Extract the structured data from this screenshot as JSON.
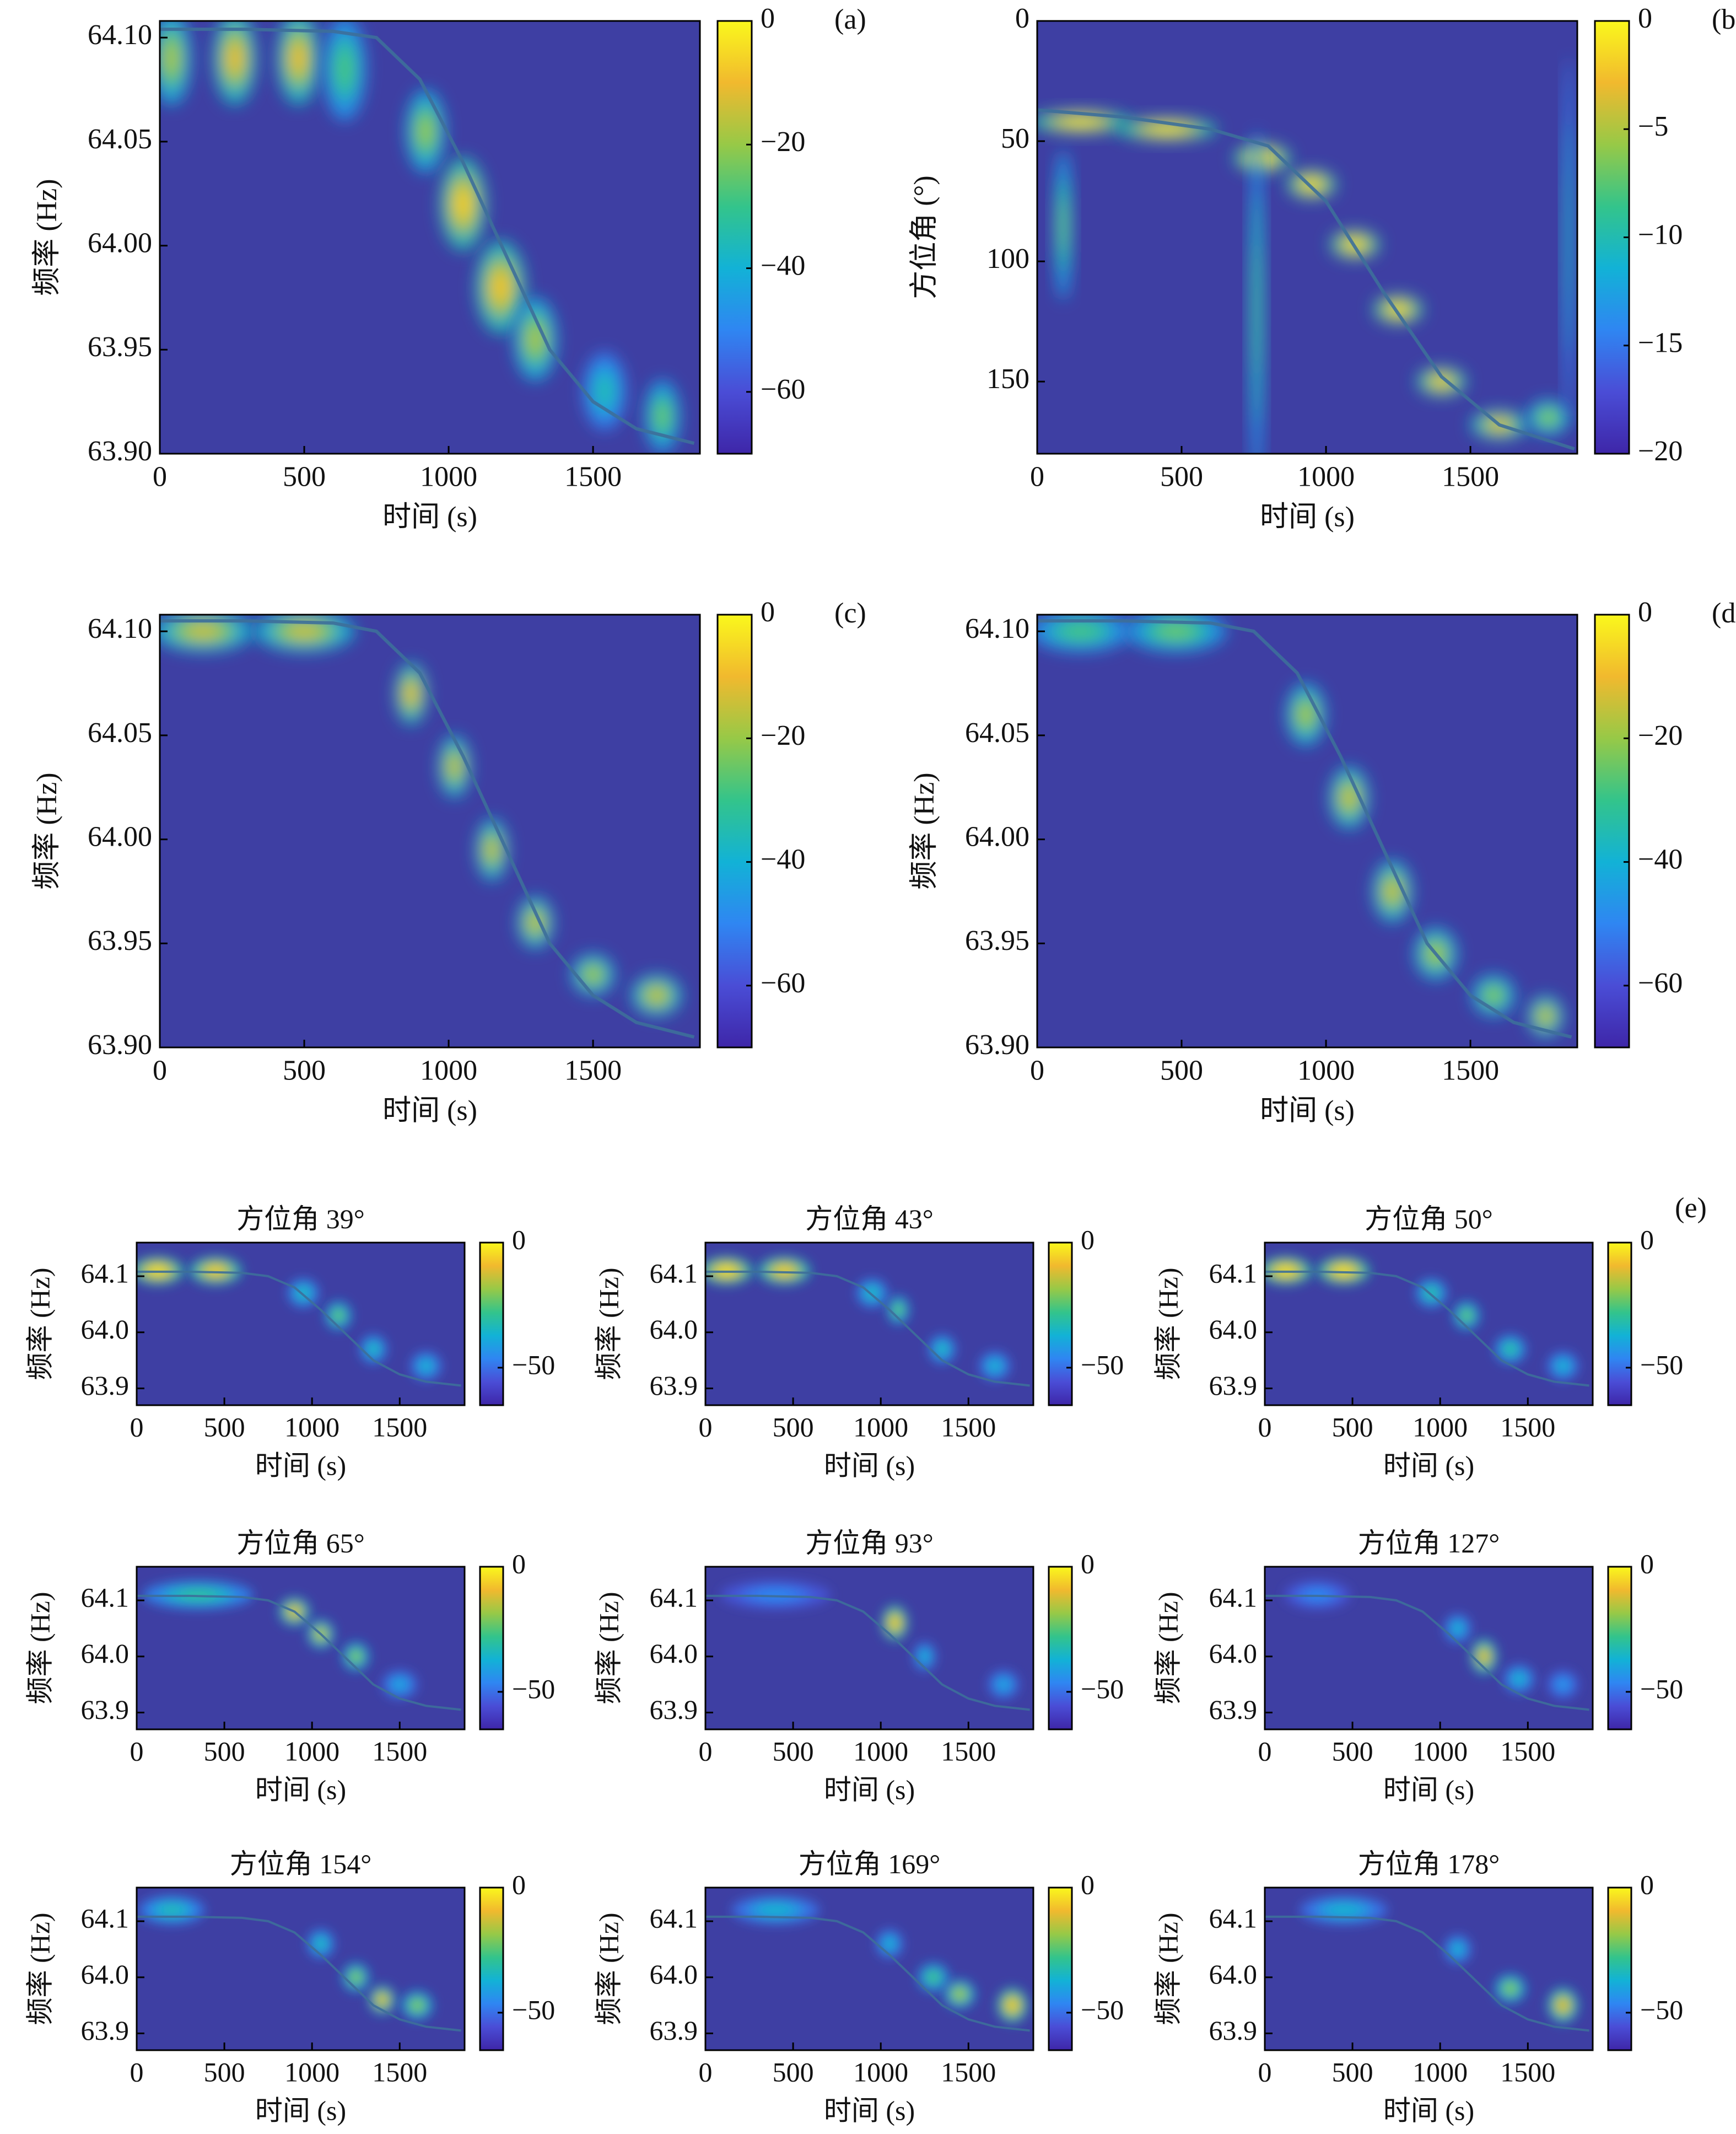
{
  "colormap": [
    "#3e26a8",
    "#4a4dd6",
    "#2f86f2",
    "#12b2d6",
    "#33c48b",
    "#97c947",
    "#f1b92e",
    "#faf81c"
  ],
  "plot_bg": "#3e3fa3",
  "ridge_line": "#3d6f9a",
  "chart_data": [
    {
      "id": "a",
      "type": "heatmap",
      "panel_label": "(a)",
      "xlabel": "时间 (s)",
      "ylabel": "频率 (Hz)",
      "x_range": [
        0,
        1870
      ],
      "y_range": [
        63.9,
        64.108
      ],
      "y_inverted": false,
      "x_ticks": [
        "0",
        "500",
        "1000",
        "1500"
      ],
      "x_tick_values": [
        0,
        500,
        1000,
        1500
      ],
      "y_ticks": [
        "64.10",
        "64.05",
        "64.00",
        "63.95",
        "63.90"
      ],
      "y_tick_values": [
        64.1,
        64.05,
        64.0,
        63.95,
        63.9
      ],
      "colorbar_range": [
        -70,
        0
      ],
      "colorbar_ticks": [
        "0",
        "−20",
        "−40",
        "−60"
      ],
      "colorbar_tick_values": [
        0,
        -20,
        -40,
        -60
      ],
      "ridge": {
        "time": [
          0,
          300,
          600,
          750,
          900,
          1050,
          1200,
          1350,
          1500,
          1650,
          1850
        ],
        "value": [
          64.104,
          64.104,
          64.103,
          64.1,
          64.08,
          64.04,
          63.995,
          63.95,
          63.925,
          63.912,
          63.905
        ]
      },
      "energy": [
        {
          "t": 40,
          "v": 64.09,
          "s": 0.75,
          "st": 55,
          "sv": 0.018
        },
        {
          "t": 260,
          "v": 64.09,
          "s": 0.85,
          "st": 60,
          "sv": 0.018
        },
        {
          "t": 480,
          "v": 64.09,
          "s": 0.85,
          "st": 60,
          "sv": 0.018
        },
        {
          "t": 640,
          "v": 64.085,
          "s": 0.6,
          "st": 60,
          "sv": 0.02
        },
        {
          "t": 920,
          "v": 64.055,
          "s": 0.72,
          "st": 55,
          "sv": 0.016
        },
        {
          "t": 1050,
          "v": 64.02,
          "s": 0.9,
          "st": 65,
          "sv": 0.018
        },
        {
          "t": 1180,
          "v": 63.98,
          "s": 0.88,
          "st": 70,
          "sv": 0.018
        },
        {
          "t": 1300,
          "v": 63.955,
          "s": 0.75,
          "st": 60,
          "sv": 0.016
        },
        {
          "t": 1540,
          "v": 63.93,
          "s": 0.5,
          "st": 60,
          "sv": 0.015
        },
        {
          "t": 1740,
          "v": 63.918,
          "s": 0.65,
          "st": 50,
          "sv": 0.014
        }
      ]
    },
    {
      "id": "b",
      "type": "heatmap",
      "panel_label": "(b)",
      "xlabel": "时间 (s)",
      "ylabel": "方位角 (°)",
      "x_range": [
        0,
        1870
      ],
      "y_range": [
        0,
        180
      ],
      "y_inverted": true,
      "x_ticks": [
        "0",
        "500",
        "1000",
        "1500"
      ],
      "x_tick_values": [
        0,
        500,
        1000,
        1500
      ],
      "y_ticks": [
        "0",
        "50",
        "100",
        "150"
      ],
      "y_tick_values": [
        0,
        50,
        100,
        150
      ],
      "colorbar_range": [
        -20,
        0
      ],
      "colorbar_ticks": [
        "0",
        "−5",
        "−10",
        "−15",
        "−20"
      ],
      "colorbar_tick_values": [
        0,
        -5,
        -10,
        -15,
        -20
      ],
      "ridge": {
        "time": [
          0,
          300,
          600,
          800,
          1000,
          1200,
          1400,
          1600,
          1860
        ],
        "value": [
          37,
          40,
          45,
          52,
          75,
          113,
          148,
          168,
          178
        ]
      },
      "energy": [
        {
          "t": 150,
          "v": 42,
          "s": 0.95,
          "st": 140,
          "sv": 4
        },
        {
          "t": 450,
          "v": 45,
          "s": 0.95,
          "st": 140,
          "sv": 4
        },
        {
          "t": 780,
          "v": 57,
          "s": 0.95,
          "st": 80,
          "sv": 5
        },
        {
          "t": 950,
          "v": 68,
          "s": 0.95,
          "st": 70,
          "sv": 5
        },
        {
          "t": 1100,
          "v": 93,
          "s": 0.95,
          "st": 70,
          "sv": 5
        },
        {
          "t": 1250,
          "v": 120,
          "s": 0.95,
          "st": 70,
          "sv": 5
        },
        {
          "t": 1400,
          "v": 150,
          "s": 0.9,
          "st": 70,
          "sv": 5
        },
        {
          "t": 1600,
          "v": 168,
          "s": 0.85,
          "st": 80,
          "sv": 5
        },
        {
          "t": 1770,
          "v": 165,
          "s": 0.7,
          "st": 60,
          "sv": 6
        },
        {
          "t": 90,
          "v": 85,
          "s": 0.65,
          "st": 25,
          "sv": 25
        },
        {
          "t": 760,
          "v": 120,
          "s": 0.6,
          "st": 20,
          "sv": 60
        },
        {
          "t": 1840,
          "v": 90,
          "s": 0.5,
          "st": 15,
          "sv": 60
        }
      ]
    },
    {
      "id": "c",
      "type": "heatmap",
      "panel_label": "(c)",
      "xlabel": "时间 (s)",
      "ylabel": "频率 (Hz)",
      "x_range": [
        0,
        1870
      ],
      "y_range": [
        63.9,
        64.108
      ],
      "y_inverted": false,
      "x_ticks": [
        "0",
        "500",
        "1000",
        "1500"
      ],
      "x_tick_values": [
        0,
        500,
        1000,
        1500
      ],
      "y_ticks": [
        "64.10",
        "64.05",
        "64.00",
        "63.95",
        "63.90"
      ],
      "y_tick_values": [
        64.1,
        64.05,
        64.0,
        63.95,
        63.9
      ],
      "colorbar_range": [
        -70,
        0
      ],
      "colorbar_ticks": [
        "0",
        "−20",
        "−40",
        "−60"
      ],
      "colorbar_tick_values": [
        0,
        -20,
        -40,
        -60
      ],
      "ridge": {
        "time": [
          0,
          300,
          600,
          750,
          900,
          1050,
          1200,
          1350,
          1500,
          1650,
          1850
        ],
        "value": [
          64.105,
          64.105,
          64.104,
          64.1,
          64.08,
          64.04,
          63.995,
          63.95,
          63.925,
          63.912,
          63.905
        ]
      },
      "energy": [
        {
          "t": 150,
          "v": 64.1,
          "s": 0.8,
          "st": 140,
          "sv": 0.008
        },
        {
          "t": 500,
          "v": 64.1,
          "s": 0.8,
          "st": 140,
          "sv": 0.008
        },
        {
          "t": 870,
          "v": 64.07,
          "s": 0.85,
          "st": 45,
          "sv": 0.012
        },
        {
          "t": 1020,
          "v": 64.035,
          "s": 0.8,
          "st": 45,
          "sv": 0.012
        },
        {
          "t": 1150,
          "v": 63.995,
          "s": 0.8,
          "st": 45,
          "sv": 0.012
        },
        {
          "t": 1300,
          "v": 63.96,
          "s": 0.8,
          "st": 50,
          "sv": 0.01
        },
        {
          "t": 1500,
          "v": 63.935,
          "s": 0.75,
          "st": 60,
          "sv": 0.008
        },
        {
          "t": 1720,
          "v": 63.925,
          "s": 0.8,
          "st": 70,
          "sv": 0.008
        }
      ]
    },
    {
      "id": "d",
      "type": "heatmap",
      "panel_label": "(d)",
      "xlabel": "时间 (s)",
      "ylabel": "频率 (Hz)",
      "x_range": [
        0,
        1870
      ],
      "y_range": [
        63.9,
        64.108
      ],
      "y_inverted": false,
      "x_ticks": [
        "0",
        "500",
        "1000",
        "1500"
      ],
      "x_tick_values": [
        0,
        500,
        1000,
        1500
      ],
      "y_ticks": [
        "64.10",
        "64.05",
        "64.00",
        "63.95",
        "63.90"
      ],
      "y_tick_values": [
        64.1,
        64.05,
        64.0,
        63.95,
        63.9
      ],
      "colorbar_range": [
        -70,
        0
      ],
      "colorbar_ticks": [
        "0",
        "−20",
        "−40",
        "−60"
      ],
      "colorbar_tick_values": [
        0,
        -20,
        -40,
        -60
      ],
      "ridge": {
        "time": [
          0,
          300,
          600,
          750,
          900,
          1050,
          1200,
          1350,
          1500,
          1650,
          1850
        ],
        "value": [
          64.105,
          64.105,
          64.104,
          64.1,
          64.08,
          64.04,
          63.995,
          63.95,
          63.925,
          63.912,
          63.905
        ]
      },
      "energy": [
        {
          "t": 150,
          "v": 64.1,
          "s": 0.6,
          "st": 140,
          "sv": 0.008
        },
        {
          "t": 480,
          "v": 64.1,
          "s": 0.65,
          "st": 140,
          "sv": 0.008
        },
        {
          "t": 930,
          "v": 64.06,
          "s": 0.75,
          "st": 55,
          "sv": 0.012
        },
        {
          "t": 1080,
          "v": 64.02,
          "s": 0.8,
          "st": 55,
          "sv": 0.012
        },
        {
          "t": 1230,
          "v": 63.975,
          "s": 0.8,
          "st": 55,
          "sv": 0.012
        },
        {
          "t": 1380,
          "v": 63.945,
          "s": 0.75,
          "st": 60,
          "sv": 0.01
        },
        {
          "t": 1580,
          "v": 63.925,
          "s": 0.7,
          "st": 60,
          "sv": 0.008
        },
        {
          "t": 1760,
          "v": 63.915,
          "s": 0.8,
          "st": 50,
          "sv": 0.008
        }
      ]
    }
  ],
  "panel_e": {
    "panel_label": "(e)",
    "xlabel": "时间 (s)",
    "ylabel": "频率 (Hz)",
    "x_range": [
      0,
      1870
    ],
    "y_range": [
      63.87,
      64.16
    ],
    "x_ticks": [
      "0",
      "500",
      "1000",
      "1500"
    ],
    "x_tick_values": [
      0,
      500,
      1000,
      1500
    ],
    "y_ticks": [
      "64.1",
      "64.0",
      "63.9"
    ],
    "y_tick_values": [
      64.1,
      64.0,
      63.9
    ],
    "colorbar_range": [
      -65,
      0
    ],
    "colorbar_ticks": [
      "0",
      "−50"
    ],
    "colorbar_tick_values": [
      0,
      -50
    ],
    "ridge": {
      "time": [
        0,
        300,
        600,
        750,
        900,
        1050,
        1200,
        1350,
        1500,
        1650,
        1850
      ],
      "value": [
        64.108,
        64.108,
        64.106,
        64.1,
        64.08,
        64.04,
        63.995,
        63.95,
        63.925,
        63.912,
        63.905
      ]
    },
    "subplots": [
      {
        "title": "方位角 39°",
        "energy": [
          {
            "t": 120,
            "v": 64.11,
            "s": 0.95,
            "st": 120,
            "sv": 0.02
          },
          {
            "t": 450,
            "v": 64.11,
            "s": 0.9,
            "st": 120,
            "sv": 0.02
          },
          {
            "t": 950,
            "v": 64.07,
            "s": 0.5,
            "st": 70,
            "sv": 0.02
          },
          {
            "t": 1150,
            "v": 64.03,
            "s": 0.65,
            "st": 60,
            "sv": 0.02
          },
          {
            "t": 1350,
            "v": 63.97,
            "s": 0.5,
            "st": 60,
            "sv": 0.02
          },
          {
            "t": 1650,
            "v": 63.94,
            "s": 0.45,
            "st": 70,
            "sv": 0.02
          }
        ]
      },
      {
        "title": "方位角 43°",
        "energy": [
          {
            "t": 120,
            "v": 64.11,
            "s": 0.95,
            "st": 120,
            "sv": 0.02
          },
          {
            "t": 450,
            "v": 64.11,
            "s": 0.9,
            "st": 120,
            "sv": 0.02
          },
          {
            "t": 950,
            "v": 64.07,
            "s": 0.5,
            "st": 70,
            "sv": 0.02
          },
          {
            "t": 1100,
            "v": 64.04,
            "s": 0.65,
            "st": 50,
            "sv": 0.02
          },
          {
            "t": 1350,
            "v": 63.97,
            "s": 0.5,
            "st": 60,
            "sv": 0.02
          },
          {
            "t": 1650,
            "v": 63.94,
            "s": 0.45,
            "st": 70,
            "sv": 0.02
          }
        ]
      },
      {
        "title": "方位角 50°",
        "energy": [
          {
            "t": 120,
            "v": 64.11,
            "s": 0.95,
            "st": 120,
            "sv": 0.02
          },
          {
            "t": 450,
            "v": 64.11,
            "s": 0.95,
            "st": 120,
            "sv": 0.02
          },
          {
            "t": 950,
            "v": 64.07,
            "s": 0.55,
            "st": 70,
            "sv": 0.02
          },
          {
            "t": 1150,
            "v": 64.03,
            "s": 0.65,
            "st": 60,
            "sv": 0.02
          },
          {
            "t": 1400,
            "v": 63.97,
            "s": 0.55,
            "st": 70,
            "sv": 0.02
          },
          {
            "t": 1700,
            "v": 63.94,
            "s": 0.45,
            "st": 70,
            "sv": 0.02
          }
        ]
      },
      {
        "title": "方位角 65°",
        "energy": [
          {
            "t": 350,
            "v": 64.11,
            "s": 0.55,
            "st": 250,
            "sv": 0.02
          },
          {
            "t": 900,
            "v": 64.08,
            "s": 0.85,
            "st": 70,
            "sv": 0.02
          },
          {
            "t": 1050,
            "v": 64.04,
            "s": 0.8,
            "st": 60,
            "sv": 0.02
          },
          {
            "t": 1250,
            "v": 64.0,
            "s": 0.7,
            "st": 60,
            "sv": 0.02
          },
          {
            "t": 1500,
            "v": 63.95,
            "s": 0.4,
            "st": 80,
            "sv": 0.02
          }
        ]
      },
      {
        "title": "方位角 93°",
        "energy": [
          {
            "t": 400,
            "v": 64.11,
            "s": 0.3,
            "st": 250,
            "sv": 0.02
          },
          {
            "t": 1080,
            "v": 64.06,
            "s": 0.9,
            "st": 60,
            "sv": 0.025
          },
          {
            "t": 1250,
            "v": 64.0,
            "s": 0.45,
            "st": 50,
            "sv": 0.02
          },
          {
            "t": 1700,
            "v": 63.95,
            "s": 0.4,
            "st": 70,
            "sv": 0.02
          }
        ]
      },
      {
        "title": "方位角 127°",
        "energy": [
          {
            "t": 300,
            "v": 64.11,
            "s": 0.3,
            "st": 150,
            "sv": 0.02
          },
          {
            "t": 1100,
            "v": 64.05,
            "s": 0.45,
            "st": 60,
            "sv": 0.02
          },
          {
            "t": 1250,
            "v": 64.0,
            "s": 0.85,
            "st": 60,
            "sv": 0.025
          },
          {
            "t": 1450,
            "v": 63.96,
            "s": 0.45,
            "st": 70,
            "sv": 0.02
          },
          {
            "t": 1700,
            "v": 63.95,
            "s": 0.35,
            "st": 70,
            "sv": 0.02
          }
        ]
      },
      {
        "title": "方位角 154°",
        "energy": [
          {
            "t": 200,
            "v": 64.12,
            "s": 0.5,
            "st": 150,
            "sv": 0.02
          },
          {
            "t": 1050,
            "v": 64.06,
            "s": 0.5,
            "st": 60,
            "sv": 0.02
          },
          {
            "t": 1250,
            "v": 64.0,
            "s": 0.7,
            "st": 60,
            "sv": 0.02
          },
          {
            "t": 1400,
            "v": 63.96,
            "s": 0.85,
            "st": 60,
            "sv": 0.02
          },
          {
            "t": 1600,
            "v": 63.95,
            "s": 0.7,
            "st": 70,
            "sv": 0.02
          }
        ]
      },
      {
        "title": "方位角 169°",
        "energy": [
          {
            "t": 400,
            "v": 64.12,
            "s": 0.45,
            "st": 200,
            "sv": 0.02
          },
          {
            "t": 1050,
            "v": 64.06,
            "s": 0.45,
            "st": 60,
            "sv": 0.02
          },
          {
            "t": 1300,
            "v": 64.0,
            "s": 0.6,
            "st": 70,
            "sv": 0.02
          },
          {
            "t": 1450,
            "v": 63.97,
            "s": 0.75,
            "st": 70,
            "sv": 0.02
          },
          {
            "t": 1750,
            "v": 63.95,
            "s": 0.9,
            "st": 70,
            "sv": 0.025
          }
        ]
      },
      {
        "title": "方位角 178°",
        "energy": [
          {
            "t": 450,
            "v": 64.12,
            "s": 0.45,
            "st": 200,
            "sv": 0.02
          },
          {
            "t": 1100,
            "v": 64.05,
            "s": 0.45,
            "st": 60,
            "sv": 0.02
          },
          {
            "t": 1400,
            "v": 63.98,
            "s": 0.7,
            "st": 70,
            "sv": 0.02
          },
          {
            "t": 1700,
            "v": 63.95,
            "s": 0.85,
            "st": 70,
            "sv": 0.025
          }
        ]
      }
    ]
  }
}
